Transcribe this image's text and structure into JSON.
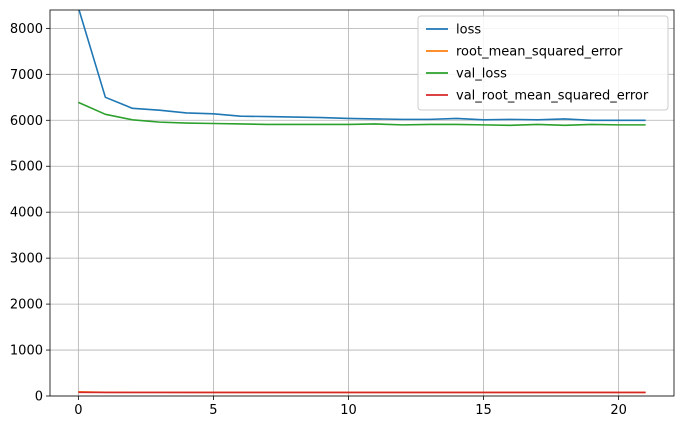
{
  "chart_data": {
    "type": "line",
    "title": "",
    "xlabel": "",
    "ylabel": "",
    "xlim": [
      -1.05,
      22.05
    ],
    "ylim": [
      0,
      8400
    ],
    "grid": true,
    "legend_location": "top-right",
    "x_ticks": [
      0,
      5,
      10,
      15,
      20
    ],
    "y_ticks": [
      0,
      1000,
      2000,
      3000,
      4000,
      5000,
      6000,
      7000,
      8000
    ],
    "x_tick_labels": [
      "0",
      "5",
      "10",
      "15",
      "20"
    ],
    "y_tick_labels": [
      "0",
      "1000",
      "2000",
      "3000",
      "4000",
      "5000",
      "6000",
      "7000",
      "8000"
    ],
    "x": [
      0,
      1,
      2,
      3,
      4,
      5,
      6,
      7,
      8,
      9,
      10,
      11,
      12,
      13,
      14,
      15,
      16,
      17,
      18,
      19,
      20,
      21
    ],
    "series": [
      {
        "name": "loss",
        "color": "#1f77b4",
        "values": [
          8450,
          6500,
          6260,
          6220,
          6160,
          6140,
          6090,
          6080,
          6070,
          6060,
          6040,
          6030,
          6020,
          6020,
          6040,
          6010,
          6020,
          6010,
          6030,
          6000,
          6000,
          6000
        ]
      },
      {
        "name": "root_mean_squared_error",
        "color": "#ff7f0e",
        "values": [
          92,
          81,
          79,
          79,
          78,
          78,
          78,
          78,
          78,
          78,
          78,
          78,
          77,
          77,
          78,
          77,
          77,
          77,
          78,
          77,
          77,
          77
        ]
      },
      {
        "name": "val_loss",
        "color": "#2ca02c",
        "values": [
          6390,
          6130,
          6010,
          5960,
          5940,
          5930,
          5920,
          5910,
          5910,
          5910,
          5910,
          5920,
          5900,
          5910,
          5910,
          5900,
          5890,
          5910,
          5890,
          5910,
          5900,
          5900
        ]
      },
      {
        "name": "val_root_mean_squared_error",
        "color": "#d62728",
        "values": [
          80,
          78,
          78,
          77,
          77,
          77,
          77,
          77,
          77,
          77,
          77,
          77,
          77,
          77,
          77,
          77,
          77,
          77,
          77,
          77,
          77,
          77
        ]
      }
    ]
  }
}
